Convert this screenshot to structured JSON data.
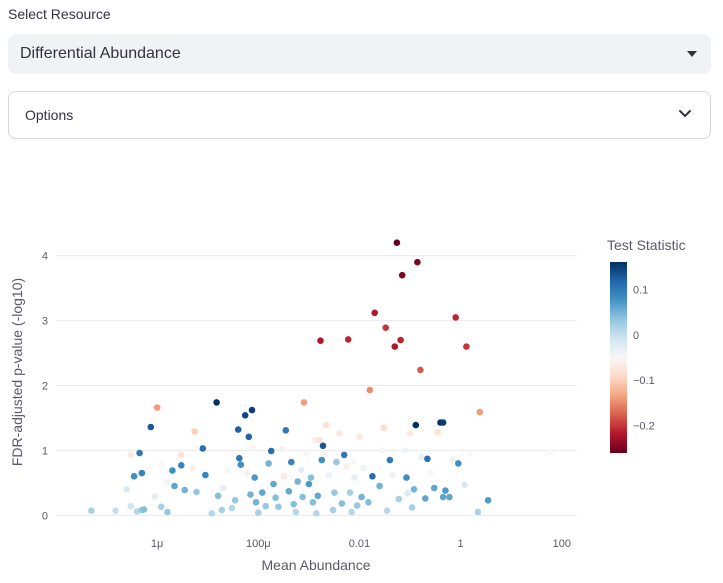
{
  "select_resource": {
    "label": "Select Resource",
    "value": "Differential Abundance"
  },
  "options": {
    "title": "Options"
  },
  "chart_data": {
    "type": "scatter",
    "xlabel": "Mean Abundance",
    "ylabel": "FDR-adjusted p-value (-log10)",
    "x_scale": "log",
    "xlim": [
      1e-08,
      200
    ],
    "ylim": [
      -0.15,
      4.35
    ],
    "x_ticks": [
      {
        "value": 1e-06,
        "label": "1μ"
      },
      {
        "value": 0.0001,
        "label": "100μ"
      },
      {
        "value": 0.01,
        "label": "0.01"
      },
      {
        "value": 1,
        "label": "1"
      },
      {
        "value": 100,
        "label": "100"
      }
    ],
    "y_ticks": [
      0,
      1,
      2,
      3,
      4
    ],
    "grid": true,
    "colorbar": {
      "title": "Test Statistic",
      "range": [
        -0.26,
        0.16
      ],
      "ticks": [
        0.1,
        0,
        -0.1,
        -0.2
      ],
      "tick_labels": [
        "0.1",
        "0",
        "−0.1",
        "−0.2"
      ],
      "colorscale": [
        "#67001f",
        "#b2182b",
        "#d6604d",
        "#f4a582",
        "#fddbc7",
        "#f7f7f7",
        "#d1e5f0",
        "#92c5de",
        "#4393c3",
        "#2166ac",
        "#053061"
      ]
    },
    "points": [
      [
        5e-08,
        0.07,
        0.02
      ],
      [
        1.5e-07,
        0.07,
        0.0
      ],
      [
        3e-07,
        0.14,
        -0.01
      ],
      [
        4e-07,
        0.06,
        0.01
      ],
      [
        5e-07,
        0.08,
        0.03
      ],
      [
        5.5e-07,
        0.09,
        0.04
      ],
      [
        9e-07,
        0.29,
        -0.03
      ],
      [
        1.2e-06,
        0.13,
        0.02
      ],
      [
        1.6e-06,
        0.05,
        0.03
      ],
      [
        2.5e-07,
        0.4,
        -0.02
      ],
      [
        3e-07,
        0.93,
        -0.07
      ],
      [
        3.5e-07,
        0.6,
        0.08
      ],
      [
        4.5e-07,
        0.96,
        0.1
      ],
      [
        5e-07,
        0.65,
        0.09
      ],
      [
        7.5e-07,
        1.36,
        0.13
      ],
      [
        1e-06,
        1.66,
        -0.14
      ],
      [
        1.2e-06,
        0.78,
        -0.05
      ],
      [
        1.6e-06,
        0.51,
        -0.04
      ],
      [
        2e-06,
        0.69,
        0.08
      ],
      [
        2.2e-06,
        0.45,
        0.06
      ],
      [
        3e-06,
        0.77,
        0.09
      ],
      [
        3e-06,
        0.93,
        -0.08
      ],
      [
        3.5e-06,
        0.39,
        0.05
      ],
      [
        5e-06,
        0.72,
        -0.06
      ],
      [
        5.5e-06,
        1.29,
        -0.1
      ],
      [
        6e-06,
        0.36,
        0.03
      ],
      [
        8e-06,
        1.03,
        0.11
      ],
      [
        9e-06,
        0.62,
        0.09
      ],
      [
        1.2e-05,
        0.03,
        0.01
      ],
      [
        1.5e-05,
        1.74,
        0.16
      ],
      [
        1.6e-05,
        0.3,
        0.04
      ],
      [
        1.9e-05,
        0.08,
        0.02
      ],
      [
        2e-05,
        0.42,
        -0.03
      ],
      [
        2.5e-05,
        0.69,
        -0.05
      ],
      [
        3e-05,
        0.11,
        0.01
      ],
      [
        3.5e-05,
        0.23,
        0.03
      ],
      [
        4e-05,
        1.32,
        0.12
      ],
      [
        4.2e-05,
        0.88,
        0.1
      ],
      [
        4.5e-05,
        0.78,
        0.08
      ],
      [
        5.5e-05,
        1.54,
        0.14
      ],
      [
        6e-05,
        0.65,
        -0.06
      ],
      [
        6.5e-05,
        1.21,
        0.12
      ],
      [
        7e-05,
        0.32,
        0.05
      ],
      [
        7.5e-05,
        1.62,
        0.15
      ],
      [
        8e-05,
        1.05,
        -0.05
      ],
      [
        8.5e-05,
        0.58,
        0.07
      ],
      [
        9e-05,
        0.2,
        0.05
      ],
      [
        0.0001,
        0.04,
        0.02
      ],
      [
        0.00012,
        0.35,
        0.06
      ],
      [
        0.00014,
        0.14,
        0.03
      ],
      [
        0.00016,
        0.8,
        0.05
      ],
      [
        0.00018,
        0.99,
        0.11
      ],
      [
        0.0002,
        0.48,
        0.06
      ],
      [
        0.00022,
        0.27,
        0.04
      ],
      [
        0.00025,
        0.13,
        0.03
      ],
      [
        0.0003,
        1.02,
        -0.04
      ],
      [
        0.00032,
        0.6,
        -0.07
      ],
      [
        0.00035,
        1.31,
        0.1
      ],
      [
        0.0004,
        0.37,
        0.06
      ],
      [
        0.00045,
        0.82,
        0.09
      ],
      [
        0.0005,
        0.17,
        0.04
      ],
      [
        0.00055,
        0.05,
        0.01
      ],
      [
        0.0006,
        0.52,
        0.05
      ],
      [
        0.0007,
        0.7,
        -0.03
      ],
      [
        0.00075,
        0.28,
        0.04
      ],
      [
        0.0008,
        1.74,
        -0.14
      ],
      [
        0.0009,
        0.96,
        -0.05
      ],
      [
        0.001,
        0.48,
        0.07
      ],
      [
        0.0011,
        0.58,
        0.04
      ],
      [
        0.0012,
        0.2,
        0.04
      ],
      [
        0.0013,
        1.16,
        -0.06
      ],
      [
        0.0014,
        0.03,
        0.01
      ],
      [
        0.0015,
        0.3,
        0.06
      ],
      [
        0.0016,
        1.16,
        -0.08
      ],
      [
        0.0017,
        2.69,
        -0.22
      ],
      [
        0.0018,
        0.85,
        0.08
      ],
      [
        0.0019,
        1.07,
        0.13
      ],
      [
        0.002,
        0.95,
        -0.06
      ],
      [
        0.0022,
        1.39,
        -0.08
      ],
      [
        0.0025,
        0.62,
        -0.04
      ],
      [
        0.003,
        0.08,
        0.02
      ],
      [
        0.0032,
        0.35,
        0.03
      ],
      [
        0.0035,
        0.82,
        0.03
      ],
      [
        0.004,
        1.26,
        -0.07
      ],
      [
        0.0045,
        0.18,
        0.04
      ],
      [
        0.005,
        0.93,
        0.1
      ],
      [
        0.0055,
        0.75,
        -0.06
      ],
      [
        0.006,
        2.71,
        -0.21
      ],
      [
        0.0065,
        0.35,
        0.02
      ],
      [
        0.007,
        0.05,
        0.01
      ],
      [
        0.0075,
        0.83,
        -0.05
      ],
      [
        0.008,
        0.58,
        -0.03
      ],
      [
        0.009,
        0.15,
        0.03
      ],
      [
        0.01,
        1.21,
        -0.07
      ],
      [
        0.011,
        0.28,
        0.05
      ],
      [
        0.012,
        0.73,
        -0.04
      ],
      [
        0.015,
        0.2,
        0.04
      ],
      [
        0.016,
        1.93,
        -0.15
      ],
      [
        0.018,
        0.6,
        0.11
      ],
      [
        0.02,
        3.12,
        -0.22
      ],
      [
        0.025,
        0.45,
        0.05
      ],
      [
        0.028,
        1.0,
        -0.05
      ],
      [
        0.03,
        1.35,
        -0.09
      ],
      [
        0.033,
        2.89,
        -0.2
      ],
      [
        0.035,
        0.07,
        0.01
      ],
      [
        0.04,
        0.85,
        0.1
      ],
      [
        0.045,
        0.62,
        -0.04
      ],
      [
        0.05,
        2.6,
        -0.22
      ],
      [
        0.055,
        4.2,
        -0.26
      ],
      [
        0.06,
        0.25,
        0.02
      ],
      [
        0.065,
        2.7,
        -0.21
      ],
      [
        0.07,
        3.7,
        -0.25
      ],
      [
        0.08,
        1.0,
        -0.04
      ],
      [
        0.085,
        0.58,
        0.08
      ],
      [
        0.09,
        0.34,
        -0.02
      ],
      [
        0.1,
        1.26,
        -0.07
      ],
      [
        0.11,
        0.12,
        0.02
      ],
      [
        0.12,
        0.4,
        0.05
      ],
      [
        0.13,
        1.39,
        0.16
      ],
      [
        0.14,
        3.9,
        -0.25
      ],
      [
        0.16,
        2.24,
        -0.18
      ],
      [
        0.17,
        0.9,
        -0.03
      ],
      [
        0.2,
        0.26,
        0.06
      ],
      [
        0.22,
        0.87,
        0.11
      ],
      [
        0.25,
        0.65,
        -0.05
      ],
      [
        0.3,
        0.42,
        0.06
      ],
      [
        0.35,
        1.28,
        -0.08
      ],
      [
        0.4,
        1.43,
        0.16
      ],
      [
        0.45,
        0.28,
        0.06
      ],
      [
        0.45,
        1.43,
        0.15
      ],
      [
        0.5,
        0.38,
        0.07
      ],
      [
        0.6,
        0.28,
        0.06
      ],
      [
        0.7,
        0.85,
        -0.04
      ],
      [
        0.8,
        3.05,
        -0.21
      ],
      [
        0.9,
        0.8,
        0.08
      ],
      [
        1.2,
        0.47,
        -0.02
      ],
      [
        1.3,
        2.6,
        -0.2
      ],
      [
        1.5,
        0.95,
        -0.05
      ],
      [
        2.2,
        0.05,
        0.02
      ],
      [
        2.4,
        1.59,
        -0.14
      ],
      [
        3.5,
        0.23,
        0.07
      ],
      [
        60,
        0.97,
        -0.05
      ]
    ]
  }
}
